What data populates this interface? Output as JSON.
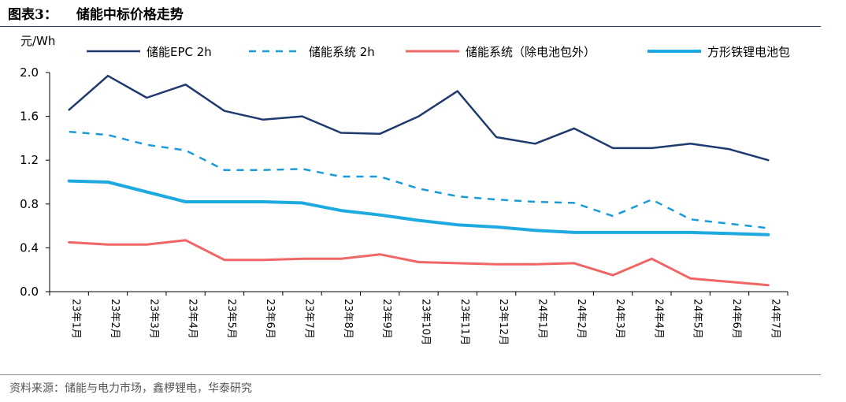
{
  "header": {
    "figure_no": "图表3：",
    "title": "储能中标价格走势"
  },
  "footer": {
    "source": "资料来源：储能与电力市场，鑫椤锂电，华泰研究"
  },
  "chart_data": {
    "type": "line",
    "title": "储能中标价格走势",
    "ylabel": "元/Wh",
    "xlabel": "",
    "ylim": [
      0,
      2.0
    ],
    "yticks": [
      0.0,
      0.4,
      0.8,
      1.2,
      1.6,
      2.0
    ],
    "ytick_labels": [
      "0.0",
      "0.4",
      "0.8",
      "1.2",
      "1.6",
      "2.0"
    ],
    "legend_position": "top",
    "grid": false,
    "categories": [
      "23年1月",
      "23年2月",
      "23年3月",
      "23年4月",
      "23年5月",
      "23年6月",
      "23年7月",
      "23年8月",
      "23年9月",
      "23年10月",
      "23年11月",
      "23年12月",
      "24年1月",
      "24年2月",
      "24年3月",
      "24年4月",
      "24年5月",
      "24年6月",
      "24年7月"
    ],
    "series": [
      {
        "name": "储能EPC 2h",
        "color": "#1f3a6e",
        "style": "solid",
        "width": 2.5,
        "values": [
          1.66,
          1.97,
          1.77,
          1.89,
          1.65,
          1.57,
          1.6,
          1.45,
          1.44,
          1.6,
          1.83,
          1.41,
          1.35,
          1.49,
          1.31,
          1.31,
          1.35,
          1.3,
          1.2
        ]
      },
      {
        "name": "储能系统 2h",
        "color": "#1a9ad6",
        "style": "dashed",
        "width": 2.5,
        "values": [
          1.46,
          1.43,
          1.34,
          1.29,
          1.11,
          1.11,
          1.12,
          1.05,
          1.05,
          0.94,
          0.87,
          0.84,
          0.82,
          0.81,
          0.69,
          0.84,
          0.66,
          0.62,
          0.58
        ]
      },
      {
        "name": "储能系统（除电池包外）",
        "color": "#f06666",
        "style": "solid",
        "width": 3,
        "values": [
          0.45,
          0.43,
          0.43,
          0.47,
          0.29,
          0.29,
          0.3,
          0.3,
          0.34,
          0.27,
          0.26,
          0.25,
          0.25,
          0.26,
          0.15,
          0.3,
          0.12,
          0.09,
          0.06
        ]
      },
      {
        "name": "方形铁锂电池包",
        "color": "#1ea9e1",
        "style": "solid",
        "width": 4,
        "values": [
          1.01,
          1.0,
          0.91,
          0.82,
          0.82,
          0.82,
          0.81,
          0.74,
          0.7,
          0.65,
          0.61,
          0.59,
          0.56,
          0.54,
          0.54,
          0.54,
          0.54,
          0.53,
          0.52
        ]
      }
    ]
  }
}
